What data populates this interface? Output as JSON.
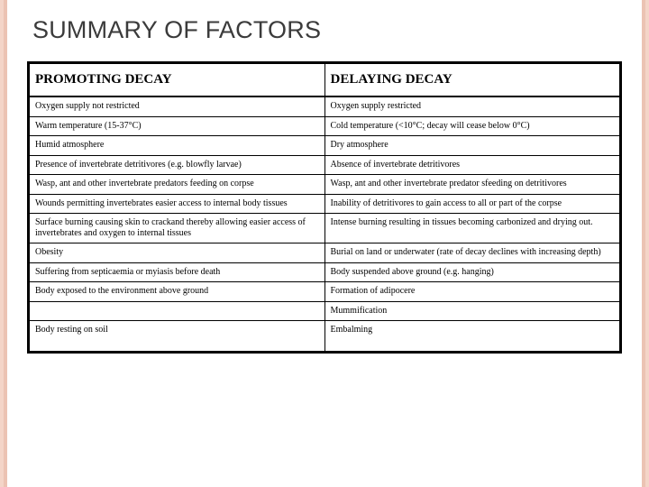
{
  "title": "SUMMARY OF FACTORS",
  "stripe_colors": {
    "outer": "#f4d5c8",
    "inner": "#ecc3b3"
  },
  "table": {
    "headers": {
      "left": "PROMOTING DECAY",
      "right": "DELAYING DECAY"
    },
    "rows": [
      {
        "left": "Oxygen supply not restricted",
        "right": "Oxygen supply restricted"
      },
      {
        "left": "Warm temperature (15-37°C)",
        "right": "Cold temperature (<10°C; decay will cease below 0°C)"
      },
      {
        "left": "Humid atmosphere",
        "right": "Dry atmosphere"
      },
      {
        "left": "Presence of invertebrate detritivores (e.g. blowfly larvae)",
        "right": "Absence of invertebrate detritivores"
      },
      {
        "left": "Wasp, ant and other invertebrate predators feeding on corpse",
        "right": "Wasp, ant and other invertebrate predator sfeeding on detritivores"
      },
      {
        "left": "Wounds permitting invertebrates easier access to internal body tissues",
        "right": "Inability of detritivores to gain access to all or part of the corpse"
      },
      {
        "left": "Surface burning causing skin to crackand thereby allowing easier access of invertebrates and oxygen to internal tissues",
        "right": "Intense burning resulting in tissues becoming carbonized and drying out."
      },
      {
        "left": "Obesity",
        "right": "Burial on land or underwater (rate of decay declines with increasing depth)"
      },
      {
        "left": "Suffering from septicaemia or myiasis before death",
        "right": "Body suspended above ground (e.g. hanging)"
      },
      {
        "left": "Body exposed to the environment above ground",
        "right": "Formation of adipocere"
      },
      {
        "left": "",
        "right": "Mummification"
      },
      {
        "left": "Body resting on soil",
        "right": "Embalming"
      }
    ]
  }
}
